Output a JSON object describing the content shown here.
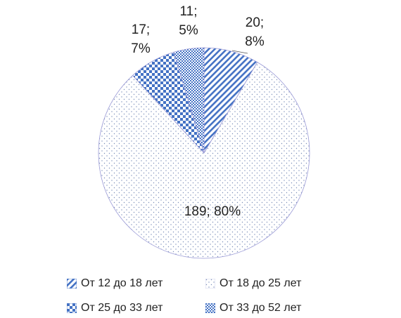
{
  "colors": {
    "accent": "#4472c4",
    "stroke": "#9a9ad6",
    "dot": "#7c8fb9",
    "text": "#222222"
  },
  "chart_data": {
    "type": "pie",
    "title": "",
    "slices": [
      {
        "name": "От 12 до 18 лет",
        "value": 20,
        "percent": "8%",
        "label_a": "20;",
        "label_b": "8%",
        "pattern": "diag"
      },
      {
        "name": "От 18 до 25 лет",
        "value": 189,
        "percent": "80%",
        "label_a": "189;",
        "label_b": "80%",
        "pattern": "dots"
      },
      {
        "name": "От 25 до 33 лет",
        "value": 17,
        "percent": "7%",
        "label_a": "17;",
        "label_b": "7%",
        "pattern": "check-large"
      },
      {
        "name": "От 33 до 52 лет",
        "value": 11,
        "percent": "5%",
        "label_a": "11;",
        "label_b": "5%",
        "pattern": "check-small"
      }
    ],
    "legend_position": "bottom"
  }
}
